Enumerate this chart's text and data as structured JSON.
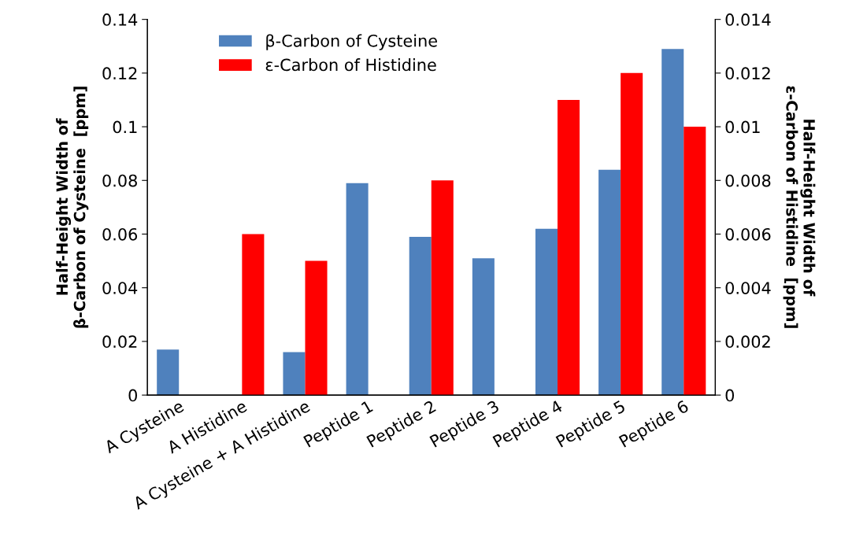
{
  "chart_data": {
    "type": "bar",
    "categories": [
      "A Cysteine",
      "A Histidine",
      "A Cysteine + A Histidine",
      "Peptide 1",
      "Peptide 2",
      "Peptide 3",
      "Peptide 4",
      "Peptide 5",
      "Peptide 6"
    ],
    "series": [
      {
        "name": "β-Carbon of Cysteine",
        "color": "#4f81bd",
        "values": [
          0.017,
          null,
          0.016,
          0.079,
          0.059,
          0.051,
          0.062,
          0.084,
          0.129
        ]
      },
      {
        "name": "ε-Carbon of Histidine",
        "color": "#ff0000",
        "axis": "y2",
        "values": [
          null,
          0.006,
          0.005,
          null,
          0.008,
          null,
          0.011,
          0.012,
          0.01
        ]
      }
    ],
    "ylabel": "Half-Height Width of\nβ-Carbon of Cysteine  [ppm]",
    "y2label": "Half-Height Width of\nε-Carbon of Histidine  [ppm]",
    "ylim": [
      0,
      0.14
    ],
    "yticks": [
      0,
      0.02,
      0.04,
      0.06,
      0.08,
      0.1,
      0.12,
      0.14
    ],
    "y2lim": [
      0,
      0.014
    ],
    "y2ticks": [
      0,
      0.002,
      0.004,
      0.006,
      0.008,
      0.01,
      0.012,
      0.014
    ],
    "legend": "top left",
    "grid": false
  }
}
